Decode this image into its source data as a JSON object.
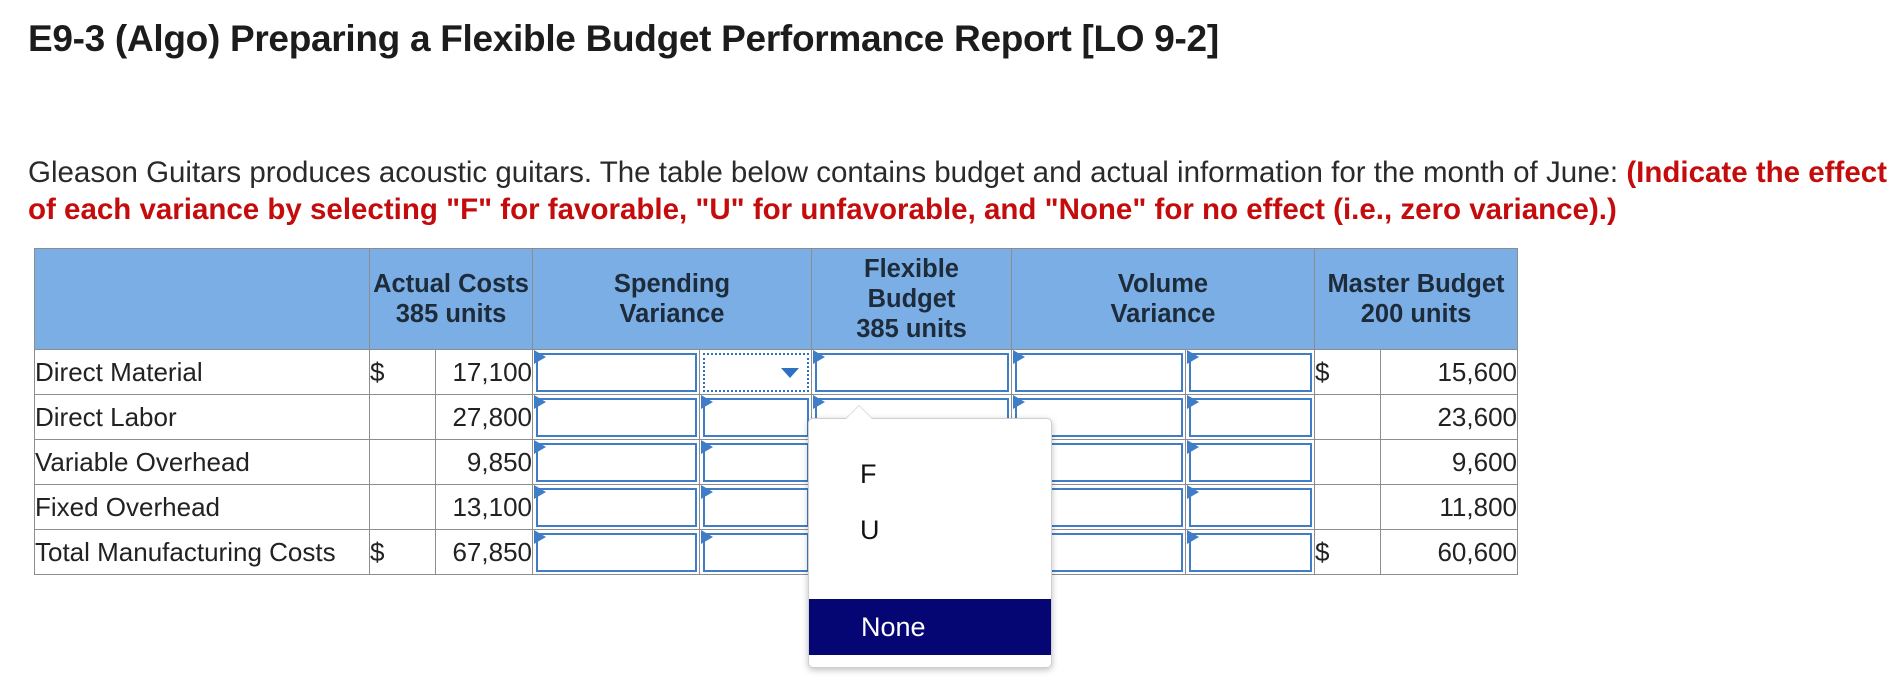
{
  "title": "E9-3 (Algo) Preparing a Flexible Budget Performance Report [LO 9-2]",
  "intro": {
    "text": "Gleason Guitars produces acoustic guitars. The table below contains budget and actual information for the month of June: ",
    "instruction": "(Indicate the effect of each variance by selecting \"F\" for favorable, \"U\" for unfavorable, and \"None\" for no effect (i.e., zero variance).)"
  },
  "table": {
    "headers": {
      "actual": [
        "Actual Costs",
        "385 units"
      ],
      "spending": [
        "Spending",
        "Variance"
      ],
      "flexible": [
        "Flexible",
        "Budget",
        "385 units"
      ],
      "volume": [
        "Volume",
        "Variance"
      ],
      "master": [
        "Master Budget",
        "200 units"
      ]
    },
    "currency": "$",
    "rows": [
      {
        "label": "Direct Material",
        "actual": "17,100",
        "master": "15,600"
      },
      {
        "label": "Direct Labor",
        "actual": "27,800",
        "master": "23,600"
      },
      {
        "label": "Variable Overhead",
        "actual": "9,850",
        "master": "9,600"
      },
      {
        "label": "Fixed Overhead",
        "actual": "13,100",
        "master": "11,800"
      },
      {
        "label": "Total Manufacturing Costs",
        "actual": "67,850",
        "master": "60,600"
      }
    ]
  },
  "dropdown": {
    "options": [
      "F",
      "U",
      "None"
    ],
    "highlighted": "None"
  },
  "colors": {
    "header_bg": "#7aaee4",
    "input_border": "#3f7ec7",
    "instruction_red": "#c40c0c",
    "highlight": "#050573"
  }
}
